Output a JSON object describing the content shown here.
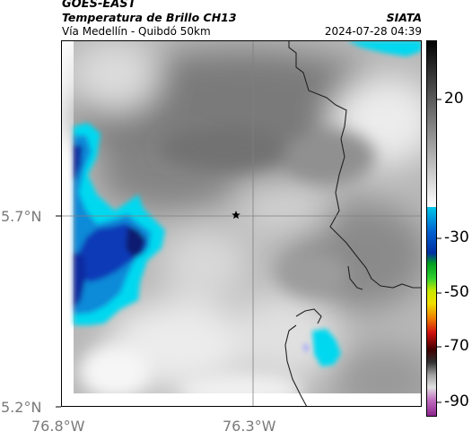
{
  "header": {
    "satellite": "GOES-EAST",
    "product": "Temperatura de Brillo CH13",
    "region": "Vía Medellín - Quibdó 50km",
    "organization": "SIATA",
    "timestamp": "2024-07-28 04:39"
  },
  "map": {
    "lat_labels": [
      "5.7°N",
      "5.2°N"
    ],
    "lon_labels": [
      "76.8°W",
      "76.3°W"
    ],
    "marker": "star-marker",
    "colors": {
      "cold_cloud_cyan": "#00d8f0",
      "deep_blue": "#0a2aa0",
      "warm_gray_dark": "#6e6e6e",
      "warm_gray_light": "#f2f2f2"
    }
  },
  "colorbar": {
    "ticks": [
      "20",
      "-30",
      "-50",
      "-70",
      "-90"
    ],
    "colors": {
      "top": "#000000",
      "gray_mid": "#9a9a9a",
      "white": "#ffffff",
      "cyan": "#00c8e8",
      "blue": "#0030c0",
      "green": "#10c010",
      "yellow": "#f0f000",
      "orange": "#f08000",
      "red": "#d01010",
      "dark": "#200000",
      "magenta": "#c040c0"
    }
  }
}
